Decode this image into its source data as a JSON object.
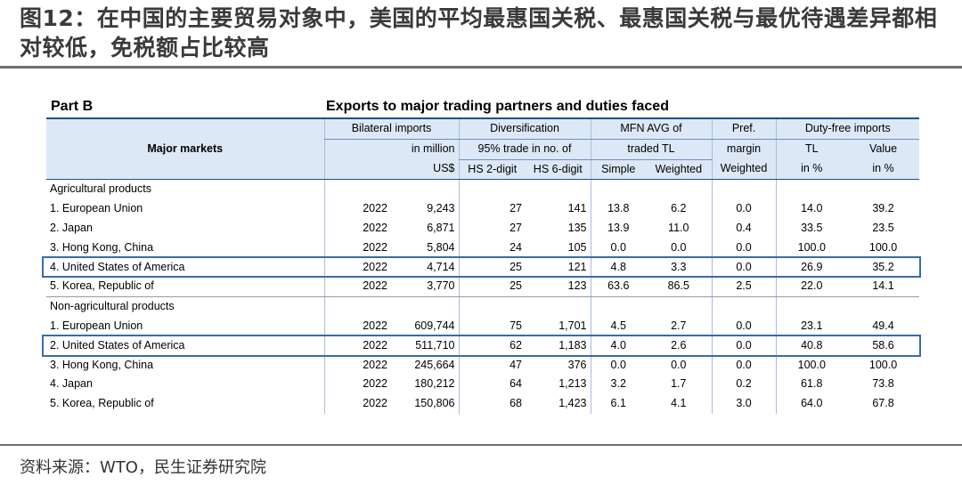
{
  "figure": {
    "title": "图12：在中国的主要贸易对象中，美国的平均最惠国关税、最惠国关税与最优待遇差异都相对较低，免税额占比较高",
    "source": "资料来源：WTO，民生证券研究院"
  },
  "table": {
    "part": "Part B",
    "title": "Exports to major trading partners and duties faced",
    "header": {
      "major_markets": "Major markets",
      "bilateral_l1": "Bilateral imports",
      "bilateral_l2": "in million",
      "bilateral_l3": "US$",
      "divers_l1": "Diversification",
      "divers_l2": "95% trade in no. of",
      "hs2": "HS 2-digit",
      "hs6": "HS 6-digit",
      "mfn_l1": "MFN AVG of",
      "mfn_l2": "traded TL",
      "simple": "Simple",
      "weighted": "Weighted",
      "pref_l1": "Pref.",
      "pref_l2": "margin",
      "pref_l3": "Weighted",
      "dutyfree_l1": "Duty-free imports",
      "tl": "TL",
      "value": "Value",
      "inpct1": "in %",
      "inpct2": "in %"
    },
    "sections": [
      {
        "label": "Agricultural products",
        "rows": [
          {
            "market": "1. European Union",
            "year": "2022",
            "imports": "9,243",
            "hs2": "27",
            "hs6": "141",
            "simple": "13.8",
            "weighted": "6.2",
            "pref": "0.0",
            "tl": "14.0",
            "value": "39.2"
          },
          {
            "market": "2. Japan",
            "year": "2022",
            "imports": "6,871",
            "hs2": "27",
            "hs6": "135",
            "simple": "13.9",
            "weighted": "11.0",
            "pref": "0.4",
            "tl": "33.5",
            "value": "23.5"
          },
          {
            "market": "3. Hong Kong, China",
            "year": "2022",
            "imports": "5,804",
            "hs2": "24",
            "hs6": "105",
            "simple": "0.0",
            "weighted": "0.0",
            "pref": "0.0",
            "tl": "100.0",
            "value": "100.0"
          },
          {
            "market": "4. United States of America",
            "year": "2022",
            "imports": "4,714",
            "hs2": "25",
            "hs6": "121",
            "simple": "4.8",
            "weighted": "3.3",
            "pref": "0.0",
            "tl": "26.9",
            "value": "35.2"
          },
          {
            "market": "5. Korea, Republic of",
            "year": "2022",
            "imports": "3,770",
            "hs2": "25",
            "hs6": "123",
            "simple": "63.6",
            "weighted": "86.5",
            "pref": "2.5",
            "tl": "22.0",
            "value": "14.1"
          }
        ]
      },
      {
        "label": "Non-agricultural products",
        "rows": [
          {
            "market": "1. European Union",
            "year": "2022",
            "imports": "609,744",
            "hs2": "75",
            "hs6": "1,701",
            "simple": "4.5",
            "weighted": "2.7",
            "pref": "0.0",
            "tl": "23.1",
            "value": "49.4"
          },
          {
            "market": "2. United States of America",
            "year": "2022",
            "imports": "511,710",
            "hs2": "62",
            "hs6": "1,183",
            "simple": "4.0",
            "weighted": "2.6",
            "pref": "0.0",
            "tl": "40.8",
            "value": "58.6"
          },
          {
            "market": "3. Hong Kong, China",
            "year": "2022",
            "imports": "245,664",
            "hs2": "47",
            "hs6": "376",
            "simple": "0.0",
            "weighted": "0.0",
            "pref": "0.0",
            "tl": "100.0",
            "value": "100.0"
          },
          {
            "market": "4. Japan",
            "year": "2022",
            "imports": "180,212",
            "hs2": "64",
            "hs6": "1,213",
            "simple": "3.2",
            "weighted": "1.7",
            "pref": "0.2",
            "tl": "61.8",
            "value": "73.8"
          },
          {
            "market": "5. Korea, Republic of",
            "year": "2022",
            "imports": "150,806",
            "hs2": "68",
            "hs6": "1,423",
            "simple": "6.1",
            "weighted": "4.1",
            "pref": "3.0",
            "tl": "64.0",
            "value": "67.8"
          }
        ]
      }
    ],
    "highlight_color": "#3b6aab",
    "header_color": "#dde8f7"
  }
}
